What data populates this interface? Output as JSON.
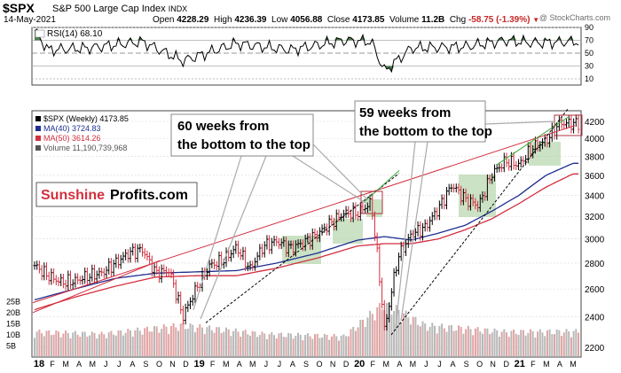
{
  "header": {
    "symbol": "$SPX",
    "description": "S&P 500 Large Cap Index",
    "exchange": "INDX",
    "date": "14-May-2021",
    "open_label": "Open",
    "open": "4228.29",
    "high_label": "High",
    "high": "4236.39",
    "low_label": "Low",
    "low": "4056.88",
    "close_label": "Close",
    "close": "4173.85",
    "volume_label": "Volume",
    "volume": "11.2B",
    "chg_label": "Chg",
    "chg": "-58.75 (-1.39%)",
    "watermark": "@ StockCharts.com"
  },
  "rsi_panel": {
    "label": "RSI(14) 68.10",
    "ticks": [
      "90",
      "70",
      "50",
      "30",
      "10"
    ]
  },
  "price_panel": {
    "legend": [
      {
        "text": "$SPX (Weekly) 4173.85",
        "color": "#000000"
      },
      {
        "text": "MA(40) 3724.83",
        "color": "#1f2f8f"
      },
      {
        "text": "MA(50) 3614.26",
        "color": "#d32f3f"
      },
      {
        "text": "Volume 11,190,739,968",
        "color": "#555555"
      }
    ],
    "y_ticks": [
      "4200",
      "4000",
      "3800",
      "3600",
      "3400",
      "3200",
      "3000",
      "2800",
      "2600",
      "2400",
      "2200"
    ],
    "volume_ticks": [
      "25B",
      "20B",
      "15B",
      "10B",
      "5B"
    ],
    "x_ticks": [
      "18",
      "F",
      "M",
      "A",
      "M",
      "J",
      "J",
      "A",
      "S",
      "O",
      "N",
      "D",
      "19",
      "F",
      "M",
      "A",
      "M",
      "J",
      "J",
      "A",
      "S",
      "O",
      "N",
      "D",
      "20",
      "F",
      "M",
      "A",
      "M",
      "J",
      "J",
      "A",
      "S",
      "O",
      "N",
      "D",
      "21",
      "F",
      "M",
      "A",
      "M"
    ]
  },
  "annotations": {
    "box1": "60 weeks from the bottom to the top",
    "box2": "59 weeks from the bottom to the top",
    "brand_part1": "Sunshine",
    "brand_part2": "Profits.com"
  },
  "colors": {
    "up": "#000000",
    "down": "#d32f3f",
    "ma40": "#1f2f8f",
    "ma50": "#d32f3f",
    "rsi_fill": "#4f7f4f",
    "consolidation": "#a9cf9f",
    "volume_up": "#b8b8b8",
    "volume_down": "#e0a4a4"
  },
  "chart_data": {
    "type": "line",
    "series": [
      {
        "name": "$SPX (Weekly)",
        "x": [
          "2018-01",
          "2018-02",
          "2018-03",
          "2018-04",
          "2018-05",
          "2018-06",
          "2018-07",
          "2018-08",
          "2018-09",
          "2018-10",
          "2018-11",
          "2018-12",
          "2019-01",
          "2019-02",
          "2019-03",
          "2019-04",
          "2019-05",
          "2019-06",
          "2019-07",
          "2019-08",
          "2019-09",
          "2019-10",
          "2019-11",
          "2019-12",
          "2020-01",
          "2020-02",
          "2020-03",
          "2020-04",
          "2020-05",
          "2020-06",
          "2020-07",
          "2020-08",
          "2020-09",
          "2020-10",
          "2020-11",
          "2020-12",
          "2021-01",
          "2021-02",
          "2021-03",
          "2021-04",
          "2021-05"
        ],
        "values": [
          2780,
          2700,
          2650,
          2660,
          2700,
          2720,
          2800,
          2880,
          2910,
          2720,
          2740,
          2400,
          2600,
          2780,
          2820,
          2930,
          2750,
          2940,
          2980,
          2920,
          2970,
          3040,
          3140,
          3230,
          3230,
          3330,
          2300,
          2850,
          3040,
          3100,
          3270,
          3500,
          3360,
          3300,
          3620,
          3750,
          3710,
          3900,
          3970,
          4180,
          4174
        ]
      },
      {
        "name": "MA(40)",
        "x": [
          "2018-01",
          "2018-04",
          "2018-07",
          "2018-10",
          "2019-01",
          "2019-04",
          "2019-07",
          "2019-10",
          "2020-01",
          "2020-03",
          "2020-05",
          "2020-07",
          "2020-09",
          "2020-11",
          "2021-01",
          "2021-03",
          "2021-05"
        ],
        "values": [
          2520,
          2600,
          2680,
          2720,
          2730,
          2740,
          2800,
          2880,
          2990,
          3020,
          2990,
          3050,
          3120,
          3250,
          3400,
          3600,
          3725
        ]
      },
      {
        "name": "MA(50)",
        "x": [
          "2018-01",
          "2018-04",
          "2018-07",
          "2018-10",
          "2019-01",
          "2019-04",
          "2019-07",
          "2019-10",
          "2020-01",
          "2020-03",
          "2020-05",
          "2020-07",
          "2020-09",
          "2020-11",
          "2021-01",
          "2021-03",
          "2021-05"
        ],
        "values": [
          2450,
          2540,
          2620,
          2690,
          2700,
          2700,
          2760,
          2840,
          2940,
          2960,
          2960,
          3000,
          3080,
          3180,
          3320,
          3480,
          3614
        ]
      },
      {
        "name": "RSI(14)",
        "x": [
          "2018-01",
          "2018-02",
          "2018-05",
          "2018-09",
          "2018-12",
          "2019-04",
          "2019-08",
          "2019-12",
          "2020-02",
          "2020-03",
          "2020-05",
          "2020-09",
          "2020-12",
          "2021-02",
          "2021-05"
        ],
        "values": [
          85,
          55,
          58,
          68,
          38,
          65,
          55,
          70,
          68,
          22,
          58,
          60,
          70,
          66,
          68
        ]
      },
      {
        "name": "Volume",
        "x": [
          "2018-01",
          "2018-06",
          "2018-12",
          "2019-06",
          "2019-12",
          "2020-03",
          "2020-06",
          "2020-12",
          "2021-05"
        ],
        "values": [
          11,
          10,
          14,
          10,
          9,
          24,
          14,
          11,
          11.2
        ]
      }
    ],
    "ylim": [
      2150,
      4350
    ],
    "rsi_ylim": [
      0,
      100
    ],
    "volume_ylim": [
      0,
      30
    ],
    "y_scale": "log",
    "grid": true,
    "legend": "top-left",
    "xlabel": "",
    "ylabel": ""
  }
}
